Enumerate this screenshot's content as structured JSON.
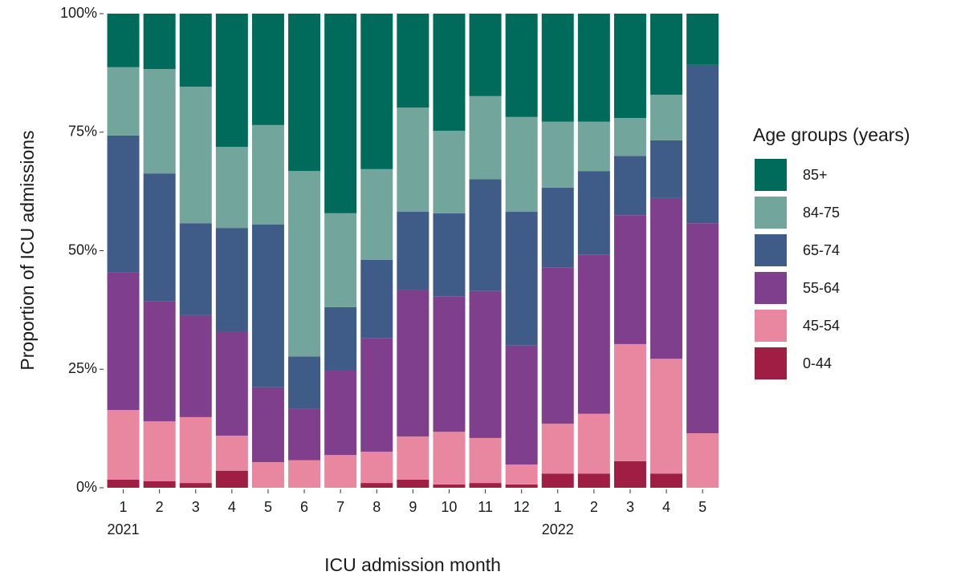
{
  "chart_data": {
    "type": "stacked_bar",
    "x_label": "ICU admission month",
    "y_label": "Proportion of ICU admissions",
    "legend_title": "Age groups (years)",
    "legend_position": "right",
    "categories": [
      "1",
      "2",
      "3",
      "4",
      "5",
      "6",
      "7",
      "8",
      "9",
      "10",
      "11",
      "12",
      "1",
      "2",
      "3",
      "4",
      "5"
    ],
    "year_labels": [
      "2021",
      null,
      null,
      null,
      null,
      null,
      null,
      null,
      null,
      null,
      null,
      null,
      "2022",
      null,
      null,
      null,
      null
    ],
    "ylim": [
      0,
      100
    ],
    "yticks": [
      {
        "value": 0,
        "label": "0%"
      },
      {
        "value": 25,
        "label": "25%"
      },
      {
        "value": 50,
        "label": "50%"
      },
      {
        "value": 75,
        "label": "75%"
      },
      {
        "value": 100,
        "label": "100%"
      }
    ],
    "series": [
      {
        "name": "0-44",
        "color": "#a01d43",
        "values": [
          1.7,
          1.4,
          1.0,
          3.6,
          0,
          0,
          0,
          1.0,
          1.7,
          0.7,
          1.0,
          0.7,
          3.0,
          3.0,
          5.6,
          3.0,
          0
        ]
      },
      {
        "name": "45-54",
        "color": "#e8879f",
        "values": [
          14.7,
          12.6,
          13.9,
          7.4,
          5.4,
          5.8,
          6.9,
          6.6,
          9.1,
          11.1,
          9.5,
          4.2,
          10.5,
          12.6,
          24.7,
          24.2,
          11.5
        ]
      },
      {
        "name": "55-64",
        "color": "#803f8d",
        "values": [
          29.1,
          25.4,
          21.5,
          22.0,
          15.8,
          10.8,
          17.8,
          24.0,
          31.0,
          28.6,
          31.0,
          25.1,
          32.9,
          33.5,
          27.2,
          33.9,
          44.3
        ]
      },
      {
        "name": "65-74",
        "color": "#3f5b87",
        "values": [
          28.8,
          26.9,
          19.4,
          21.8,
          34.3,
          11.1,
          13.4,
          16.5,
          16.4,
          17.5,
          23.6,
          28.2,
          16.9,
          17.7,
          12.5,
          12.2,
          33.4
        ]
      },
      {
        "name": "84-75",
        "color": "#72a59c",
        "values": [
          14.4,
          22.0,
          28.8,
          17.1,
          21.0,
          39.1,
          19.8,
          19.1,
          22.0,
          17.4,
          17.5,
          20.0,
          13.9,
          10.4,
          8.0,
          9.6,
          0
        ]
      },
      {
        "name": "85+",
        "color": "#006b5a",
        "values": [
          11.3,
          11.7,
          15.4,
          28.1,
          23.5,
          33.2,
          42.1,
          32.8,
          19.8,
          24.7,
          17.4,
          21.8,
          22.8,
          22.8,
          22.0,
          17.1,
          10.8
        ]
      }
    ]
  }
}
